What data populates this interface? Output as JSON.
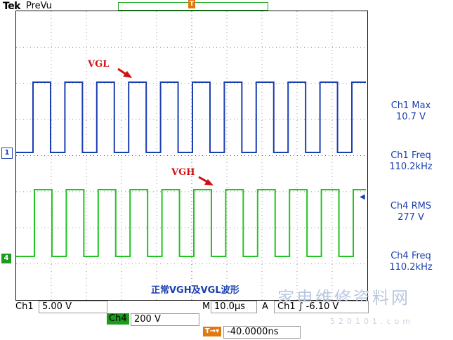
{
  "header": {
    "brand": "Tek",
    "mode": "PreVu",
    "trigger_marker": "T"
  },
  "channels": {
    "ch1_marker": "1",
    "ch4_marker": "4"
  },
  "annotations": {
    "vgl": "VGL",
    "vgh": "VGH",
    "caption": "正常VGH及VGL波形"
  },
  "measurements": [
    {
      "label": "Ch1 Max",
      "value": "10.7 V"
    },
    {
      "label": "Ch1 Freq",
      "value": "110.2kHz"
    },
    {
      "label": "Ch4 RMS",
      "value": "277 V"
    },
    {
      "label": "Ch4 Freq",
      "value": "110.2kHz"
    }
  ],
  "status": {
    "ch1_label": "Ch1",
    "ch1_scale": "5.00 V",
    "ch4_label": "Ch4",
    "ch4_scale": "200 V",
    "timebase_label": "M",
    "timebase": "10.0µs",
    "trigger_label": "A",
    "trigger_source": "Ch1",
    "trigger_slope": "∫",
    "trigger_level": "-6.10 V",
    "trigger_offset_icon": "T→▾",
    "trigger_offset": "-40.0000ns"
  },
  "watermark": {
    "text": "家电维修资料网",
    "sub": "520101.com"
  },
  "colors": {
    "ch1": "#1a3fb0",
    "ch4": "#22c422",
    "annotation": "#d01010",
    "trigger": "#e07a10"
  }
}
